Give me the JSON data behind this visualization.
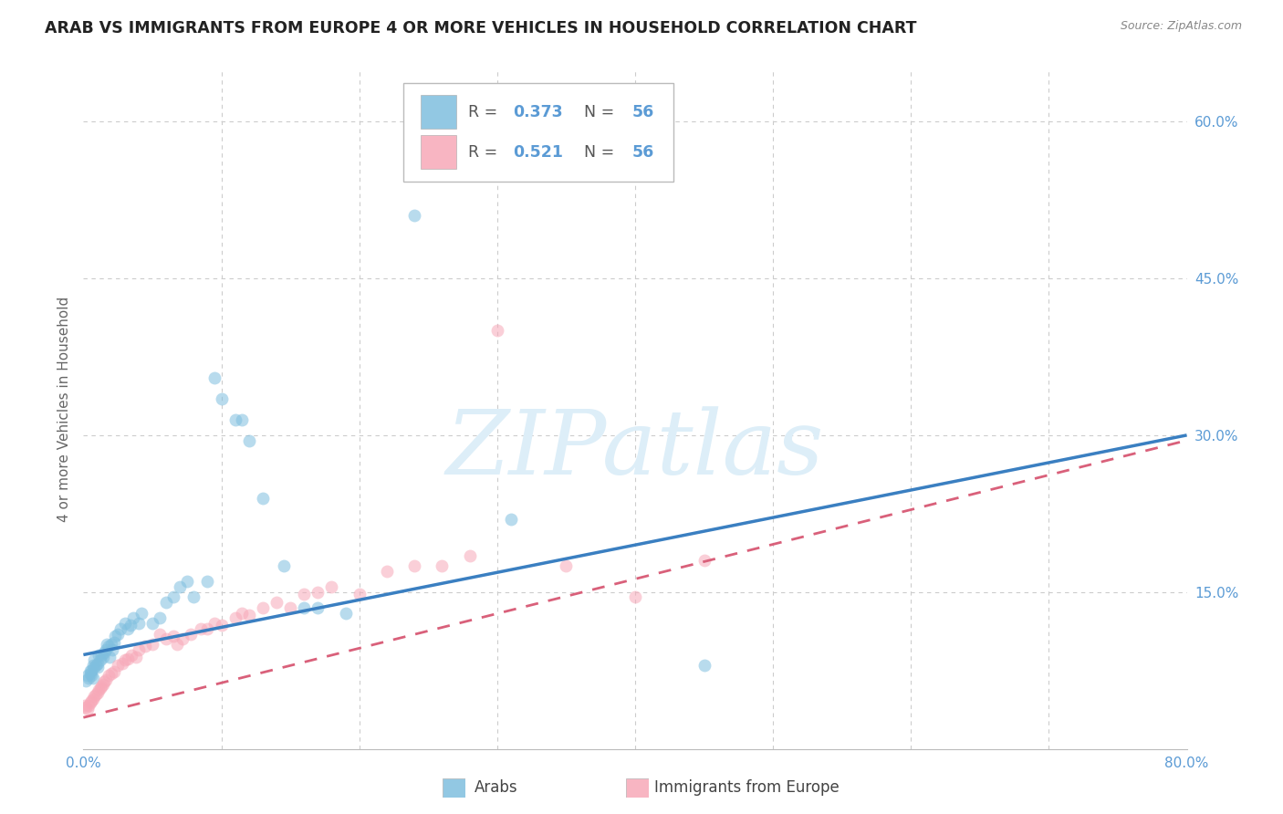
{
  "title": "ARAB VS IMMIGRANTS FROM EUROPE 4 OR MORE VEHICLES IN HOUSEHOLD CORRELATION CHART",
  "source": "Source: ZipAtlas.com",
  "ylabel": "4 or more Vehicles in Household",
  "xlim": [
    0.0,
    0.8
  ],
  "ylim": [
    0.0,
    0.65
  ],
  "legend_r_arab": "0.373",
  "legend_n_arab": "56",
  "legend_r_imm": "0.521",
  "legend_n_imm": "56",
  "arab_color": "#7fbfdf",
  "imm_color": "#f7a8b8",
  "arab_line_color": "#3a7fc1",
  "imm_line_color": "#d9607a",
  "watermark_color": "#ddeef8",
  "arab_scatter_x": [
    0.002,
    0.003,
    0.004,
    0.005,
    0.005,
    0.006,
    0.006,
    0.007,
    0.007,
    0.008,
    0.008,
    0.009,
    0.01,
    0.01,
    0.011,
    0.012,
    0.013,
    0.014,
    0.015,
    0.016,
    0.017,
    0.018,
    0.019,
    0.02,
    0.021,
    0.022,
    0.023,
    0.025,
    0.027,
    0.03,
    0.032,
    0.034,
    0.036,
    0.04,
    0.042,
    0.05,
    0.055,
    0.06,
    0.065,
    0.07,
    0.075,
    0.08,
    0.09,
    0.095,
    0.1,
    0.11,
    0.115,
    0.12,
    0.13,
    0.145,
    0.16,
    0.17,
    0.19,
    0.24,
    0.31,
    0.45
  ],
  "arab_scatter_y": [
    0.065,
    0.07,
    0.068,
    0.072,
    0.075,
    0.07,
    0.075,
    0.068,
    0.08,
    0.078,
    0.085,
    0.08,
    0.078,
    0.082,
    0.09,
    0.085,
    0.09,
    0.088,
    0.092,
    0.095,
    0.1,
    0.098,
    0.088,
    0.1,
    0.095,
    0.102,
    0.108,
    0.11,
    0.115,
    0.12,
    0.115,
    0.118,
    0.125,
    0.12,
    0.13,
    0.12,
    0.125,
    0.14,
    0.145,
    0.155,
    0.16,
    0.145,
    0.16,
    0.355,
    0.335,
    0.315,
    0.315,
    0.295,
    0.24,
    0.175,
    0.135,
    0.135,
    0.13,
    0.51,
    0.22,
    0.08
  ],
  "imm_scatter_x": [
    0.001,
    0.002,
    0.003,
    0.004,
    0.005,
    0.006,
    0.007,
    0.008,
    0.009,
    0.01,
    0.011,
    0.012,
    0.013,
    0.014,
    0.015,
    0.016,
    0.018,
    0.02,
    0.022,
    0.025,
    0.028,
    0.03,
    0.032,
    0.035,
    0.038,
    0.04,
    0.045,
    0.05,
    0.055,
    0.06,
    0.065,
    0.068,
    0.072,
    0.078,
    0.085,
    0.09,
    0.095,
    0.1,
    0.11,
    0.115,
    0.12,
    0.13,
    0.14,
    0.15,
    0.16,
    0.17,
    0.18,
    0.2,
    0.22,
    0.24,
    0.26,
    0.28,
    0.3,
    0.35,
    0.4,
    0.45
  ],
  "imm_scatter_y": [
    0.042,
    0.04,
    0.038,
    0.042,
    0.044,
    0.046,
    0.048,
    0.05,
    0.052,
    0.054,
    0.056,
    0.058,
    0.06,
    0.062,
    0.064,
    0.066,
    0.07,
    0.072,
    0.074,
    0.08,
    0.082,
    0.085,
    0.086,
    0.09,
    0.088,
    0.095,
    0.098,
    0.1,
    0.11,
    0.105,
    0.108,
    0.1,
    0.105,
    0.11,
    0.115,
    0.115,
    0.12,
    0.118,
    0.125,
    0.13,
    0.128,
    0.135,
    0.14,
    0.135,
    0.148,
    0.15,
    0.155,
    0.148,
    0.17,
    0.175,
    0.175,
    0.185,
    0.4,
    0.175,
    0.145,
    0.18
  ],
  "arab_line_x0": 0.0,
  "arab_line_x1": 0.8,
  "arab_line_y0": 0.09,
  "arab_line_y1": 0.3,
  "imm_line_x0": 0.0,
  "imm_line_x1": 0.8,
  "imm_line_y0": 0.03,
  "imm_line_y1": 0.295,
  "background_color": "#ffffff",
  "grid_color": "#cccccc",
  "title_fontsize": 12.5,
  "axis_label_fontsize": 11,
  "tick_fontsize": 11,
  "tick_color": "#5b9bd5",
  "source_fontsize": 9,
  "scatter_size": 100,
  "scatter_alpha": 0.55
}
